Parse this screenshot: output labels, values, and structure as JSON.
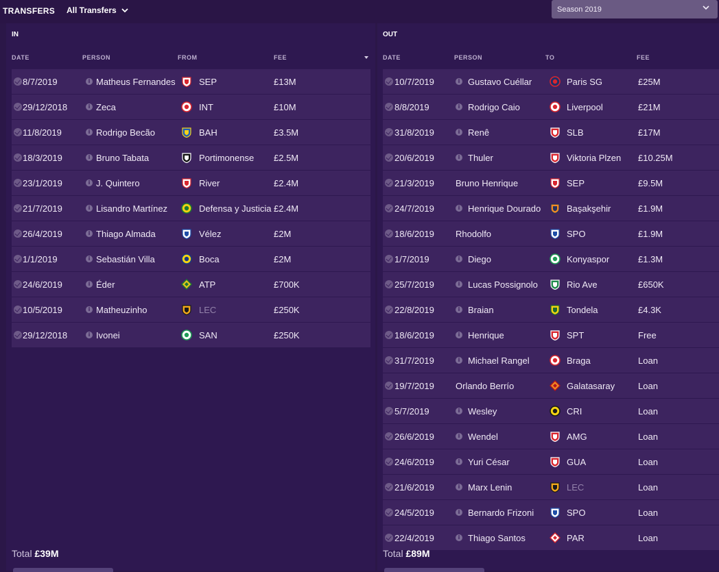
{
  "header": {
    "title": "TRANSFERS",
    "filter": "All Transfers",
    "season": "Season 2019"
  },
  "in": {
    "title": "IN",
    "columns": {
      "date": "DATE",
      "person": "PERSON",
      "club": "FROM",
      "fee": "FEE"
    },
    "rows": [
      {
        "date": "8/7/2019",
        "person": "Matheus Fernandes",
        "club": "SEP",
        "fee": "£13M",
        "info": true,
        "crest": "shield-red",
        "muted": false
      },
      {
        "date": "29/12/2018",
        "person": "Zeca",
        "club": "INT",
        "fee": "£10M",
        "info": true,
        "crest": "round-red",
        "muted": false
      },
      {
        "date": "11/8/2019",
        "person": "Rodrigo Becão",
        "club": "BAH",
        "fee": "£3.5M",
        "info": true,
        "crest": "shield-blue-yellow",
        "muted": false
      },
      {
        "date": "18/3/2019",
        "person": "Bruno Tabata",
        "club": "Portimonense",
        "fee": "£2.5M",
        "info": true,
        "crest": "shield-black-white",
        "muted": false
      },
      {
        "date": "23/1/2019",
        "person": "J. Quintero",
        "club": "River",
        "fee": "£2.4M",
        "info": true,
        "crest": "shield-red-band",
        "muted": false
      },
      {
        "date": "21/7/2019",
        "person": "Lisandro Martínez",
        "club": "Defensa y Justicia",
        "fee": "£2.4M",
        "info": true,
        "crest": "round-green-yellow",
        "muted": false
      },
      {
        "date": "26/4/2019",
        "person": "Thiago Almada",
        "club": "Vélez",
        "fee": "£2M",
        "info": true,
        "crest": "shield-white-blue",
        "muted": false
      },
      {
        "date": "1/1/2019",
        "person": "Sebastián Villa",
        "club": "Boca",
        "fee": "£2M",
        "info": true,
        "crest": "round-blue-yellow",
        "muted": false
      },
      {
        "date": "24/6/2019",
        "person": "Éder",
        "club": "ATP",
        "fee": "£700K",
        "info": true,
        "crest": "diamond-yellow-green",
        "muted": false
      },
      {
        "date": "10/5/2019",
        "person": "Matheuzinho",
        "club": "LEC",
        "fee": "£250K",
        "info": true,
        "crest": "shield-orange-black",
        "muted": true
      },
      {
        "date": "29/12/2018",
        "person": "Ivonei",
        "club": "SAN",
        "fee": "£250K",
        "info": true,
        "crest": "round-green-white",
        "muted": false
      }
    ],
    "total_label": "Total",
    "total_value": "£39M"
  },
  "out": {
    "title": "OUT",
    "columns": {
      "date": "DATE",
      "person": "PERSON",
      "club": "TO",
      "fee": "FEE"
    },
    "rows": [
      {
        "date": "10/7/2019",
        "person": "Gustavo Cuéllar",
        "club": "Paris SG",
        "fee": "£25M",
        "info": true,
        "crest": "round-navy",
        "muted": false
      },
      {
        "date": "8/8/2019",
        "person": "Rodrigo Caio",
        "club": "Liverpool",
        "fee": "£21M",
        "info": true,
        "crest": "round-red",
        "muted": false
      },
      {
        "date": "31/8/2019",
        "person": "Renê",
        "club": "SLB",
        "fee": "£17M",
        "info": true,
        "crest": "shield-red-white",
        "muted": false
      },
      {
        "date": "20/6/2019",
        "person": "Thuler",
        "club": "Viktoria Plzen",
        "fee": "£10.25M",
        "info": true,
        "crest": "shield-red-white",
        "muted": false
      },
      {
        "date": "21/3/2019",
        "person": "Bruno Henrique",
        "club": "SEP",
        "fee": "£9.5M",
        "info": false,
        "crest": "shield-red",
        "muted": false
      },
      {
        "date": "24/7/2019",
        "person": "Henrique Dourado",
        "club": "Başakşehir",
        "fee": "£1.9M",
        "info": true,
        "crest": "shield-orange-navy",
        "muted": false
      },
      {
        "date": "18/6/2019",
        "person": "Rhodolfo",
        "club": "SPO",
        "fee": "£1.9M",
        "info": false,
        "crest": "shield-white-blue",
        "muted": false
      },
      {
        "date": "1/7/2019",
        "person": "Diego",
        "club": "Konyaspor",
        "fee": "£1.3M",
        "info": true,
        "crest": "round-green-white",
        "muted": false
      },
      {
        "date": "25/7/2019",
        "person": "Lucas Possignolo",
        "club": "Rio Ave",
        "fee": "£650K",
        "info": true,
        "crest": "shield-green-white",
        "muted": false
      },
      {
        "date": "22/8/2019",
        "person": "Braian",
        "club": "Tondela",
        "fee": "£4.3K",
        "info": true,
        "crest": "shield-yellow-green",
        "muted": false
      },
      {
        "date": "18/6/2019",
        "person": "Henrique",
        "club": "SPT",
        "fee": "Free",
        "info": true,
        "crest": "shield-red-white",
        "muted": false
      },
      {
        "date": "31/7/2019",
        "person": "Michael Rangel",
        "club": "Braga",
        "fee": "Loan",
        "info": true,
        "crest": "round-red",
        "muted": false
      },
      {
        "date": "19/7/2019",
        "person": "Orlando Berrío",
        "club": "Galatasaray",
        "fee": "Loan",
        "info": false,
        "crest": "diamond-orange",
        "muted": false
      },
      {
        "date": "5/7/2019",
        "person": "Wesley",
        "club": "CRI",
        "fee": "Loan",
        "info": true,
        "crest": "round-yellow-black",
        "muted": false
      },
      {
        "date": "26/6/2019",
        "person": "Wendel",
        "club": "AMG",
        "fee": "Loan",
        "info": true,
        "crest": "shield-red-white",
        "muted": false
      },
      {
        "date": "24/6/2019",
        "person": "Yuri César",
        "club": "GUA",
        "fee": "Loan",
        "info": true,
        "crest": "shield-red-white",
        "muted": false
      },
      {
        "date": "21/6/2019",
        "person": "Marx Lenin",
        "club": "LEC",
        "fee": "Loan",
        "info": true,
        "crest": "shield-orange-black",
        "muted": true
      },
      {
        "date": "24/5/2019",
        "person": "Bernardo Frizoni",
        "club": "SPO",
        "fee": "Loan",
        "info": true,
        "crest": "shield-white-blue",
        "muted": false
      },
      {
        "date": "22/4/2019",
        "person": "Thiago Santos",
        "club": "PAR",
        "fee": "Loan",
        "info": true,
        "crest": "diamond-red-white",
        "muted": false
      }
    ],
    "total_label": "Total",
    "total_value": "£89M"
  },
  "colors": {
    "background": "#2b1748",
    "row": "#3d245f",
    "text": "#f0eaf6",
    "header_text": "#bdb0cf",
    "muted_club": "#9483ab"
  },
  "icons": {
    "filter": "chevron-down-icon",
    "season": "chevron-down-icon",
    "date": "check-circle-icon",
    "person": "info-icon",
    "club": "club-crest-icon"
  }
}
